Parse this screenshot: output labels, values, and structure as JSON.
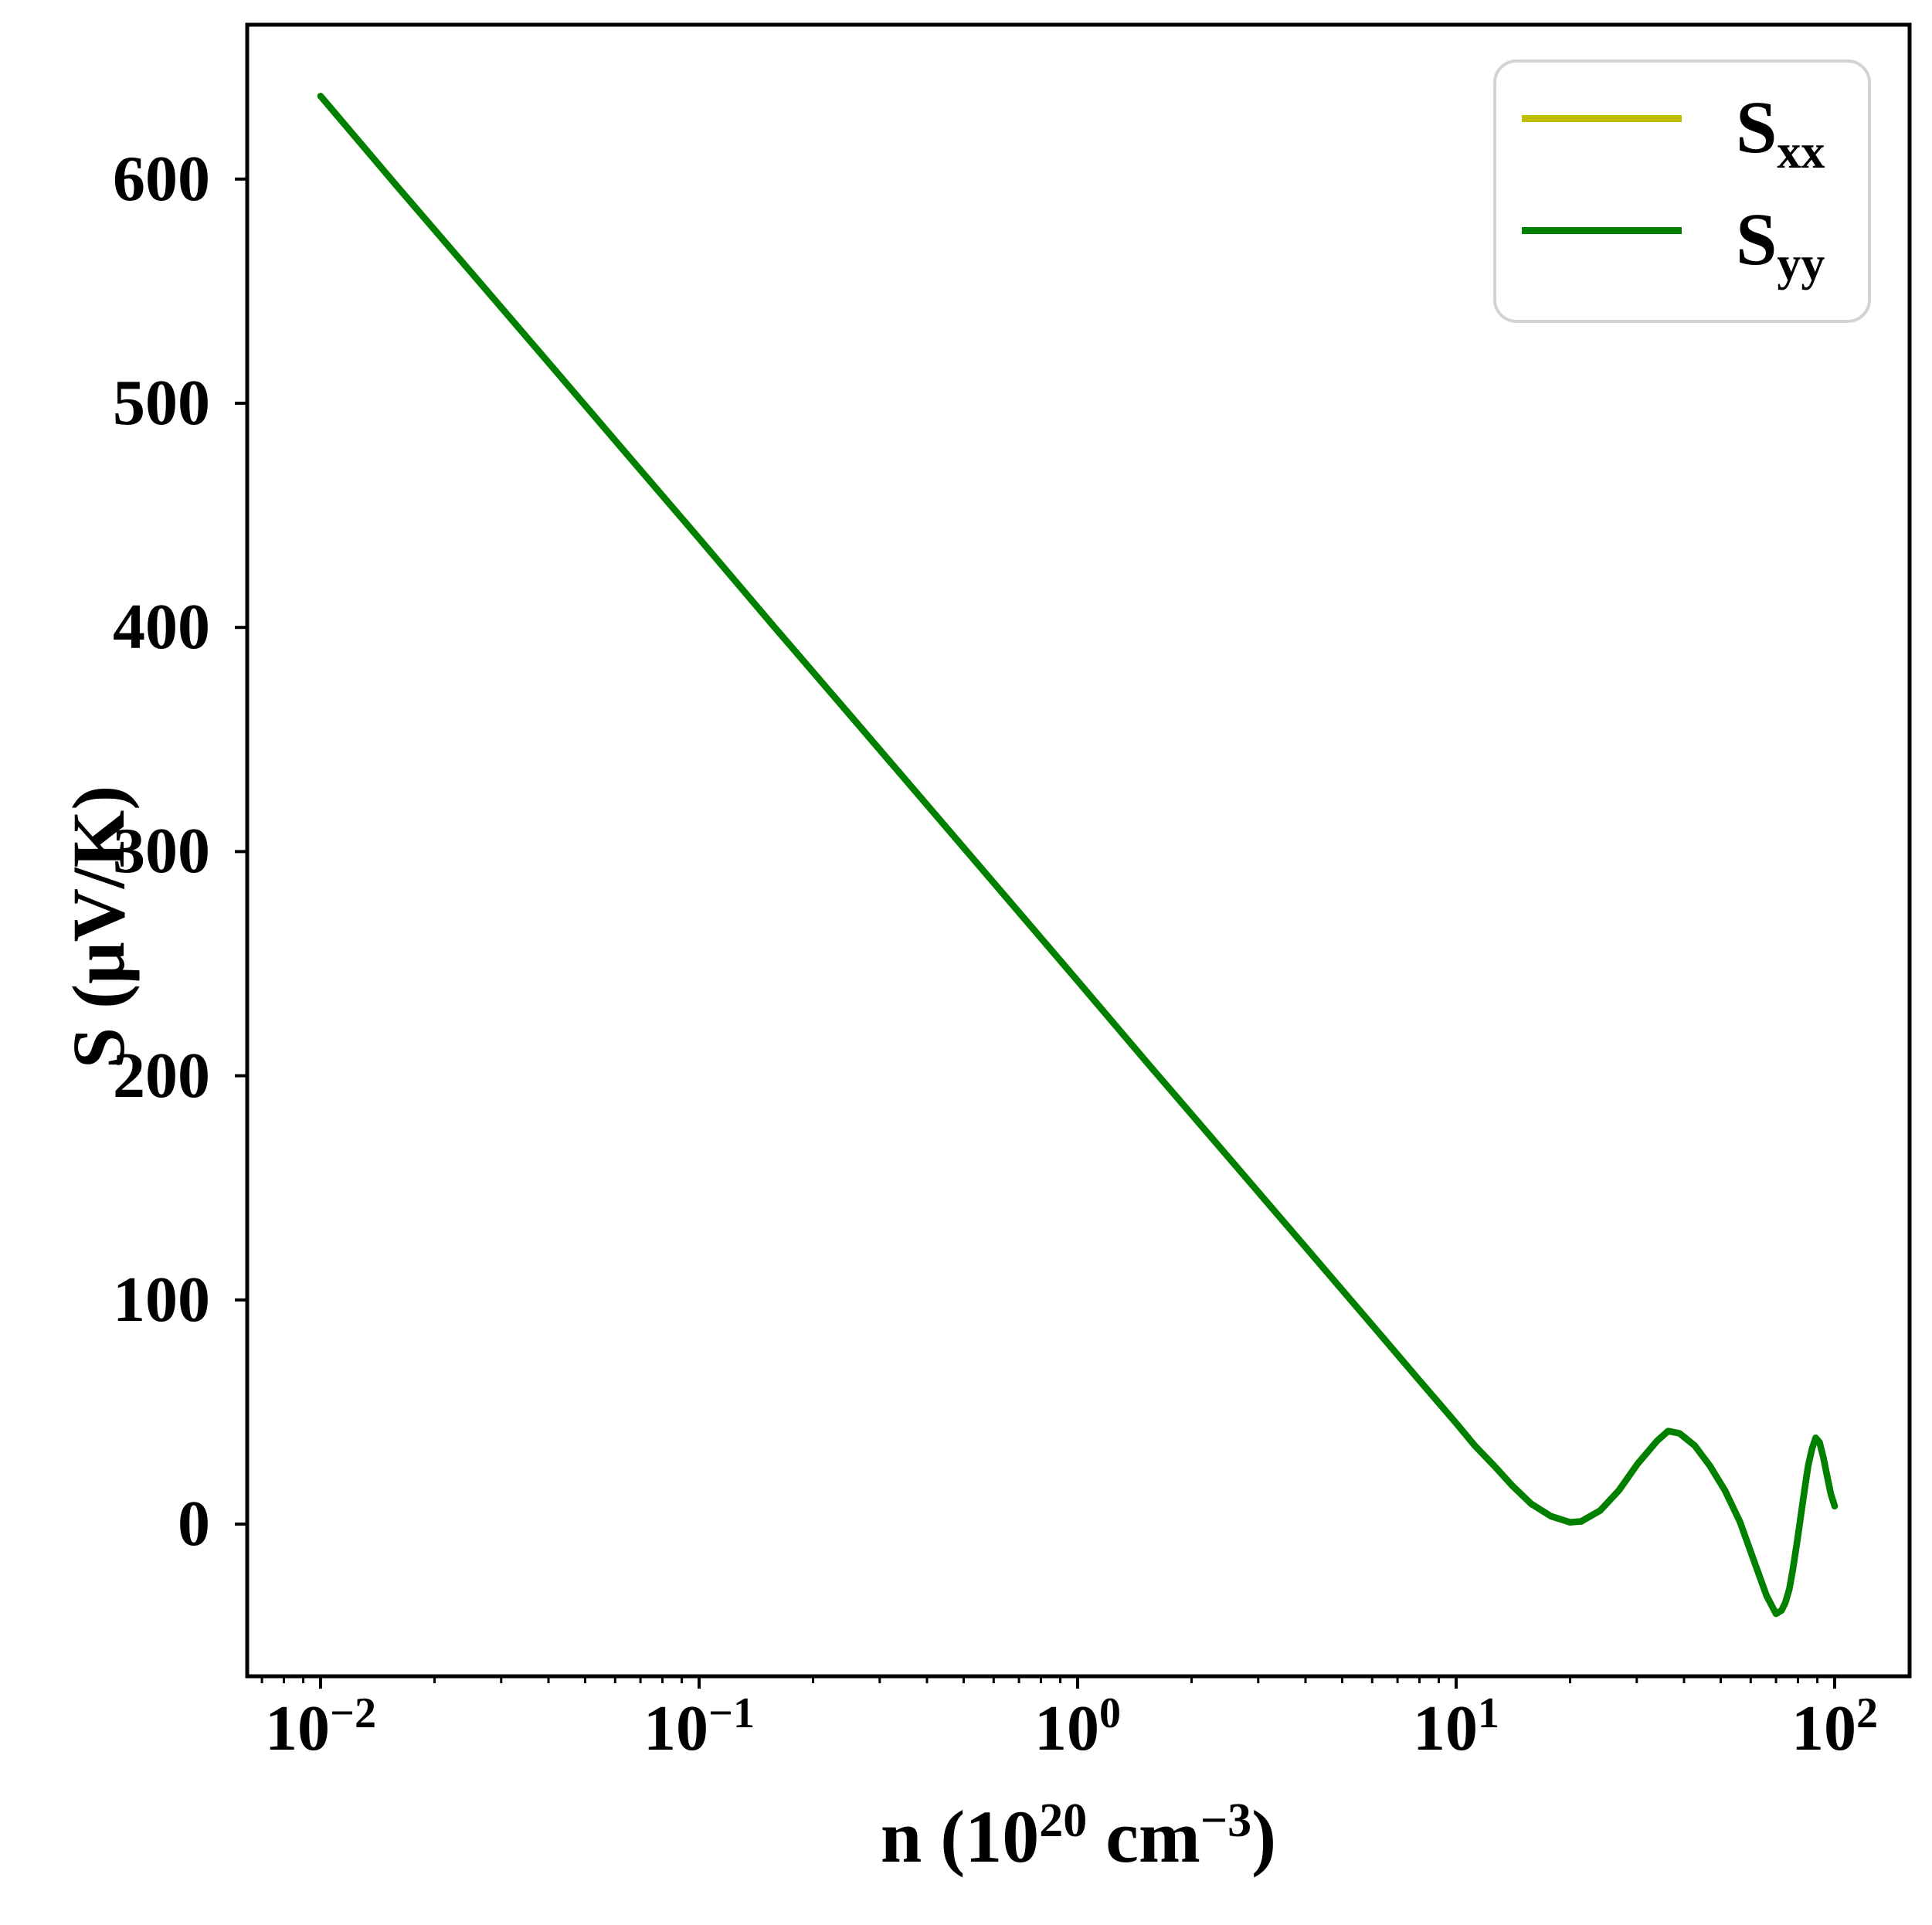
{
  "figure": {
    "background": "#ffffff"
  },
  "axes": {
    "ylabel": "S (μV/K)",
    "xlabel": {
      "pre": "n (10",
      "sup1": "20",
      "mid": " cm",
      "sup2": "−3",
      "post": ")"
    },
    "y_ticks": [
      {
        "label": "0",
        "value": 0
      },
      {
        "label": "100",
        "value": 100
      },
      {
        "label": "200",
        "value": 200
      },
      {
        "label": "300",
        "value": 300
      },
      {
        "label": "400",
        "value": 400
      },
      {
        "label": "500",
        "value": 500
      },
      {
        "label": "600",
        "value": 600
      }
    ],
    "x_major_ticks": [
      {
        "base": "10",
        "exp": "−2",
        "value": 0.01
      },
      {
        "base": "10",
        "exp": "−1",
        "value": 0.1
      },
      {
        "base": "10",
        "exp": "0",
        "value": 1
      },
      {
        "base": "10",
        "exp": "1",
        "value": 10
      },
      {
        "base": "10",
        "exp": "2",
        "value": 100
      }
    ],
    "spine_color": "#000000"
  },
  "legend": {
    "entries": [
      {
        "label": "S",
        "sub": "xx",
        "color": "#bfbf00"
      },
      {
        "label": "S",
        "sub": "yy",
        "color": "#008000"
      }
    ]
  },
  "chart_data": {
    "type": "line",
    "x_scale": "log",
    "title": "",
    "xlabel": "n (10^20 cm^-3)",
    "ylabel": "S (μV/K)",
    "xlim": [
      0.01,
      100
    ],
    "ylim": [
      -68,
      669
    ],
    "grid": false,
    "legend_position": "upper right",
    "note": "S_xx and S_yy coincide exactly; the green S_yy curve is drawn over the yellow S_xx curve so only green is visible in the plot.",
    "x": [
      0.01,
      0.0158,
      0.0251,
      0.0398,
      0.0631,
      0.1,
      0.158,
      0.251,
      0.398,
      0.631,
      1.0,
      1.58,
      2.51,
      3.98,
      6.31,
      7.94,
      8.91,
      10.0,
      11.2,
      12.6,
      14.1,
      15.8,
      17.8,
      20.0,
      21.4,
      24.0,
      26.9,
      30.2,
      33.9,
      36.3,
      38.9,
      42.7,
      46.8,
      51.3,
      56.2,
      61.7,
      66.1,
      70.0,
      72.4,
      74.1,
      75.9,
      77.6,
      79.4,
      81.3,
      83.2,
      85.1,
      87.1,
      89.1,
      91.2,
      93.3,
      95.5,
      97.7,
      100.0
    ],
    "series": [
      {
        "name": "S_xx",
        "color": "#bfbf00",
        "values": [
          637,
          597.5,
          558,
          518.6,
          479.1,
          439.7,
          400.2,
          360.7,
          321.3,
          281.8,
          242.3,
          202.9,
          163.4,
          124.0,
          84.5,
          64.7,
          54.9,
          45.0,
          35.0,
          26.0,
          17.0,
          9.0,
          3.5,
          0.8,
          1.2,
          6.0,
          15.0,
          27.0,
          37.0,
          41.5,
          40.5,
          35.0,
          26.0,
          15.0,
          1.0,
          -18.0,
          -32.0,
          -40.0,
          -38.5,
          -35.0,
          -29.0,
          -20.0,
          -9.0,
          3.0,
          15.0,
          26.0,
          33.5,
          38.5,
          36.5,
          30.0,
          21.5,
          13.5,
          8.0
        ]
      },
      {
        "name": "S_yy",
        "color": "#008000",
        "values": [
          637,
          597.5,
          558,
          518.6,
          479.1,
          439.7,
          400.2,
          360.7,
          321.3,
          281.8,
          242.3,
          202.9,
          163.4,
          124.0,
          84.5,
          64.7,
          54.9,
          45.0,
          35.0,
          26.0,
          17.0,
          9.0,
          3.5,
          0.8,
          1.2,
          6.0,
          15.0,
          27.0,
          37.0,
          41.5,
          40.5,
          35.0,
          26.0,
          15.0,
          1.0,
          -18.0,
          -32.0,
          -40.0,
          -38.5,
          -35.0,
          -29.0,
          -20.0,
          -9.0,
          3.0,
          15.0,
          26.0,
          33.5,
          38.5,
          36.5,
          30.0,
          21.5,
          13.5,
          8.0
        ]
      }
    ]
  }
}
